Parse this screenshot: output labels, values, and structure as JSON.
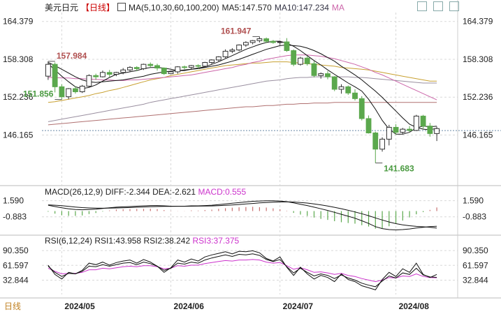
{
  "title": "美元日元",
  "period": "【日线】",
  "ma_label": "MA(5,10,30,60,100,200)",
  "ma5": "MA5:147.570",
  "ma10": "MA10:147.234",
  "ma_more": "MA",
  "colors": {
    "up": "#ffffff",
    "down": "#5ba84d",
    "ma5": "#111111",
    "ma10": "#111111",
    "ma30": "#cc66aa",
    "ma60": "#c8a030",
    "ma100": "#9a8fa0",
    "ma200": "#b07070",
    "macd_pos": "#c87070",
    "macd_neg": "#5ba84d",
    "diff": "#111111",
    "dea": "#111111",
    "rsi1": "#111111",
    "rsi2": "#111111",
    "rsi3": "#cc33cc",
    "grid": "#d8d8d8"
  },
  "price_axis": [
    "164.379",
    "158.308",
    "152.236",
    "146.165"
  ],
  "high_label": "161.947",
  "low_label": "141.683",
  "left_high_label": "157.984",
  "left_low_label": "151.856",
  "macd_header": {
    "name": "MACD(26,12,9)",
    "diff": "DIFF:-2.344",
    "dea": "DEA:-2.621",
    "macd": "MACD:0.555"
  },
  "macd_axis": [
    "1.590",
    "-0.883"
  ],
  "rsi_header": {
    "name": "RSI(6,12,24)",
    "rsi1": "RSI1:43.958",
    "rsi2": "RSI2:38.242",
    "rsi3": "RSI3:37.375"
  },
  "rsi_axis": [
    "90.350",
    "61.597",
    "32.844"
  ],
  "dates": [
    "2024/05",
    "2024/06",
    "2024/07",
    "2024/08"
  ],
  "period_tab": "日线",
  "chart_data": {
    "type": "candlestick",
    "candles": [
      [
        155.6,
        157.98,
        155.0,
        157.5
      ],
      [
        157.5,
        157.8,
        153.0,
        153.9
      ],
      [
        153.9,
        154.3,
        151.86,
        152.3
      ],
      [
        152.3,
        153.7,
        151.9,
        153.6
      ],
      [
        153.6,
        154.0,
        152.8,
        153.1
      ],
      [
        153.1,
        154.2,
        152.9,
        154.0
      ],
      [
        154.0,
        155.9,
        153.8,
        155.7
      ],
      [
        155.7,
        156.0,
        155.0,
        155.5
      ],
      [
        155.5,
        156.5,
        155.4,
        156.2
      ],
      [
        156.2,
        156.6,
        155.5,
        155.9
      ],
      [
        155.9,
        156.3,
        155.6,
        156.2
      ],
      [
        156.2,
        156.9,
        155.9,
        156.6
      ],
      [
        156.6,
        157.2,
        156.3,
        157.0
      ],
      [
        157.0,
        157.2,
        156.4,
        156.8
      ],
      [
        156.8,
        157.6,
        156.6,
        157.5
      ],
      [
        157.5,
        157.8,
        157.0,
        157.3
      ],
      [
        157.3,
        157.6,
        156.5,
        156.9
      ],
      [
        156.9,
        157.0,
        155.8,
        156.0
      ],
      [
        156.0,
        156.5,
        155.9,
        156.3
      ],
      [
        156.3,
        157.2,
        156.0,
        157.1
      ],
      [
        157.1,
        157.3,
        156.7,
        157.0
      ],
      [
        157.0,
        157.4,
        156.7,
        157.3
      ],
      [
        157.3,
        157.5,
        156.8,
        157.2
      ],
      [
        157.2,
        157.9,
        157.0,
        157.8
      ],
      [
        157.8,
        158.3,
        157.5,
        158.2
      ],
      [
        158.2,
        158.8,
        158.0,
        158.7
      ],
      [
        158.7,
        159.9,
        158.5,
        159.6
      ],
      [
        159.6,
        160.1,
        159.3,
        159.8
      ],
      [
        159.8,
        160.7,
        159.6,
        160.6
      ],
      [
        160.6,
        161.2,
        160.3,
        161.0
      ],
      [
        161.0,
        161.4,
        160.7,
        161.3
      ],
      [
        161.3,
        161.95,
        161.0,
        161.6
      ],
      [
        161.6,
        161.8,
        160.9,
        161.2
      ],
      [
        161.2,
        161.4,
        160.8,
        161.0
      ],
      [
        161.0,
        161.3,
        160.6,
        161.1
      ],
      [
        161.1,
        161.7,
        159.5,
        159.7
      ],
      [
        159.7,
        159.9,
        157.2,
        157.5
      ],
      [
        157.5,
        158.7,
        157.3,
        158.5
      ],
      [
        158.5,
        158.8,
        157.3,
        157.6
      ],
      [
        157.6,
        158.0,
        155.4,
        155.7
      ],
      [
        155.7,
        156.2,
        155.2,
        156.0
      ],
      [
        156.0,
        156.4,
        155.1,
        155.5
      ],
      [
        155.5,
        155.6,
        153.2,
        153.5
      ],
      [
        153.5,
        154.3,
        152.8,
        153.9
      ],
      [
        153.9,
        154.1,
        152.6,
        152.9
      ],
      [
        152.9,
        153.5,
        151.7,
        152.0
      ],
      [
        152.0,
        152.4,
        148.5,
        148.8
      ],
      [
        148.8,
        149.3,
        146.4,
        146.5
      ],
      [
        146.5,
        146.7,
        141.68,
        143.9
      ],
      [
        143.9,
        145.8,
        143.5,
        145.5
      ],
      [
        145.5,
        147.8,
        144.5,
        147.4
      ],
      [
        147.4,
        147.9,
        146.2,
        146.6
      ],
      [
        146.6,
        147.3,
        146.3,
        147.1
      ],
      [
        147.1,
        147.6,
        146.6,
        146.9
      ],
      [
        146.9,
        149.4,
        146.8,
        149.2
      ],
      [
        149.2,
        149.4,
        147.2,
        147.6
      ],
      [
        147.6,
        148.1,
        145.9,
        146.4
      ],
      [
        146.4,
        147.5,
        145.2,
        147.2
      ]
    ],
    "ma5": [
      157.6,
      156.6,
      155.6,
      154.7,
      153.9,
      153.6,
      153.8,
      154.2,
      154.8,
      155.4,
      155.9,
      156.1,
      156.3,
      156.5,
      156.8,
      157.0,
      157.0,
      156.9,
      156.7,
      156.5,
      156.5,
      156.7,
      156.9,
      157.1,
      157.5,
      157.9,
      158.4,
      158.9,
      159.4,
      159.9,
      160.3,
      160.7,
      161.0,
      161.2,
      161.2,
      160.9,
      160.4,
      159.7,
      158.9,
      158.1,
      157.4,
      156.6,
      155.9,
      155.2,
      154.5,
      153.9,
      153.2,
      151.9,
      150.3,
      148.5,
      147.1,
      146.3,
      146.3,
      146.6,
      147.3,
      147.6,
      147.5,
      147.57
    ],
    "ma10": [
      157.8,
      157.3,
      156.7,
      156.1,
      155.5,
      155.0,
      154.7,
      154.6,
      154.7,
      154.8,
      154.9,
      155.0,
      155.2,
      155.4,
      155.6,
      155.9,
      156.1,
      156.3,
      156.4,
      156.5,
      156.6,
      156.7,
      156.8,
      157.0,
      157.2,
      157.4,
      157.7,
      158.0,
      158.3,
      158.7,
      159.1,
      159.5,
      159.9,
      160.2,
      160.5,
      160.6,
      160.5,
      160.4,
      160.1,
      159.7,
      159.2,
      158.6,
      158.0,
      157.2,
      156.5,
      155.8,
      155.0,
      154.1,
      153.2,
      152.2,
      151.1,
      150.0,
      148.9,
      147.9,
      147.4,
      147.1,
      147.0,
      147.234
    ],
    "ma30": [
      155.4,
      155.4,
      155.3,
      155.3,
      155.2,
      155.2,
      155.1,
      155.1,
      155.0,
      155.0,
      154.9,
      154.9,
      155.0,
      155.0,
      155.1,
      155.2,
      155.3,
      155.4,
      155.5,
      155.6,
      155.7,
      155.8,
      156.0,
      156.2,
      156.4,
      156.6,
      156.8,
      157.0,
      157.3,
      157.5,
      157.8,
      158.0,
      158.3,
      158.5,
      158.7,
      158.9,
      159.0,
      159.0,
      159.0,
      158.9,
      158.8,
      158.6,
      158.4,
      158.1,
      157.8,
      157.5,
      157.1,
      156.7,
      156.2,
      155.8,
      155.3,
      154.8,
      154.3,
      153.8,
      153.3,
      152.8,
      152.3,
      151.8
    ],
    "ma60": [
      151.4,
      151.5,
      151.7,
      151.9,
      152.1,
      152.3,
      152.5,
      152.8,
      153.0,
      153.3,
      153.5,
      153.8,
      154.1,
      154.4,
      154.7,
      155.0,
      155.2,
      155.4,
      155.7,
      155.9,
      156.1,
      156.3,
      156.5,
      156.7,
      156.9,
      157.1,
      157.3,
      157.4,
      157.5,
      157.6,
      157.7,
      157.7,
      157.8,
      157.9,
      157.9,
      157.9,
      157.8,
      157.7,
      157.6,
      157.5,
      157.4,
      157.3,
      157.2,
      157.0,
      156.9,
      156.8,
      156.7,
      156.6,
      156.4,
      156.2,
      156.0,
      155.8,
      155.6,
      155.4,
      155.2,
      155.0,
      154.8,
      154.8
    ],
    "ma100": [
      148.3,
      148.5,
      148.7,
      148.9,
      149.1,
      149.3,
      149.5,
      149.7,
      149.9,
      150.1,
      150.3,
      150.5,
      150.7,
      150.9,
      151.1,
      151.4,
      151.6,
      151.8,
      152.0,
      152.2,
      152.4,
      152.6,
      152.8,
      153.0,
      153.2,
      153.4,
      153.6,
      153.8,
      154.0,
      154.2,
      154.4,
      154.6,
      154.8,
      154.9,
      155.0,
      155.2,
      155.3,
      155.4,
      155.4,
      155.5,
      155.5,
      155.5,
      155.5,
      155.5,
      155.5,
      155.4,
      155.4,
      155.3,
      155.2,
      155.1,
      155.0,
      154.9,
      154.8,
      154.7,
      154.6,
      154.5,
      154.5,
      154.5
    ],
    "ma200": [
      147.8,
      147.9,
      148.0,
      148.1,
      148.2,
      148.3,
      148.4,
      148.5,
      148.6,
      148.7,
      148.8,
      148.9,
      149.0,
      149.1,
      149.2,
      149.3,
      149.4,
      149.5,
      149.6,
      149.7,
      149.8,
      149.9,
      150.0,
      150.1,
      150.2,
      150.3,
      150.4,
      150.5,
      150.6,
      150.7,
      150.7,
      150.8,
      150.9,
      150.9,
      151.0,
      151.1,
      151.1,
      151.2,
      151.2,
      151.3,
      151.3,
      151.3,
      151.4,
      151.4,
      151.4,
      151.4,
      151.4,
      151.4,
      151.4,
      151.4,
      151.4,
      151.4,
      151.4,
      151.4,
      151.4,
      151.4,
      151.4,
      151.4
    ],
    "diff": [
      0.9,
      0.7,
      0.5,
      0.35,
      0.25,
      0.2,
      0.25,
      0.3,
      0.4,
      0.5,
      0.6,
      0.65,
      0.7,
      0.75,
      0.8,
      0.85,
      0.85,
      0.8,
      0.75,
      0.75,
      0.75,
      0.8,
      0.8,
      0.85,
      0.9,
      1.0,
      1.1,
      1.2,
      1.3,
      1.4,
      1.5,
      1.55,
      1.59,
      1.58,
      1.55,
      1.45,
      1.25,
      1.05,
      0.85,
      0.6,
      0.35,
      0.1,
      -0.2,
      -0.5,
      -0.8,
      -1.1,
      -1.5,
      -1.9,
      -2.4,
      -2.7,
      -2.85,
      -2.9,
      -2.85,
      -2.75,
      -2.6,
      -2.5,
      -2.4,
      -2.344
    ],
    "dea": [
      0.95,
      0.9,
      0.82,
      0.72,
      0.62,
      0.54,
      0.48,
      0.45,
      0.44,
      0.45,
      0.48,
      0.51,
      0.55,
      0.59,
      0.63,
      0.67,
      0.7,
      0.72,
      0.73,
      0.74,
      0.74,
      0.75,
      0.76,
      0.77,
      0.79,
      0.83,
      0.88,
      0.94,
      1.01,
      1.09,
      1.17,
      1.25,
      1.32,
      1.37,
      1.41,
      1.42,
      1.39,
      1.32,
      1.23,
      1.1,
      0.95,
      0.78,
      0.58,
      0.36,
      0.12,
      -0.13,
      -0.41,
      -0.71,
      -1.05,
      -1.38,
      -1.68,
      -1.93,
      -2.12,
      -2.26,
      -2.35,
      -2.42,
      -2.49,
      -2.621
    ],
    "macd_hist": [
      -0.1,
      -0.4,
      -0.64,
      -0.74,
      -0.74,
      -0.68,
      -0.46,
      -0.3,
      -0.08,
      0.1,
      0.24,
      0.28,
      0.3,
      0.32,
      0.34,
      0.36,
      0.3,
      0.16,
      0.04,
      0.02,
      0.02,
      0.1,
      0.08,
      0.16,
      0.22,
      0.34,
      0.44,
      0.52,
      0.58,
      0.62,
      0.66,
      0.6,
      0.54,
      0.42,
      0.28,
      0.06,
      -0.28,
      -0.54,
      -0.76,
      -1.0,
      -1.2,
      -1.36,
      -1.56,
      -1.72,
      -1.84,
      -1.94,
      -2.18,
      -2.38,
      -2.7,
      -2.64,
      -2.34,
      -1.94,
      -1.46,
      -0.98,
      -0.5,
      -0.16,
      0.18,
      0.555
    ],
    "rsi1": [
      62,
      44,
      35,
      48,
      45,
      52,
      66,
      63,
      68,
      62,
      67,
      70,
      72,
      66,
      73,
      68,
      60,
      48,
      57,
      72,
      68,
      74,
      70,
      78,
      82,
      85,
      88,
      84,
      89,
      88,
      90,
      86,
      75,
      70,
      78,
      58,
      42,
      58,
      45,
      35,
      42,
      38,
      30,
      45,
      34,
      30,
      22,
      18,
      14,
      34,
      48,
      40,
      55,
      48,
      66,
      44,
      38,
      43.958
    ],
    "rsi2": [
      60,
      48,
      40,
      46,
      45,
      50,
      60,
      59,
      63,
      60,
      63,
      66,
      67,
      63,
      68,
      65,
      60,
      52,
      56,
      66,
      64,
      68,
      66,
      72,
      76,
      79,
      82,
      79,
      83,
      82,
      84,
      81,
      73,
      69,
      73,
      59,
      47,
      56,
      48,
      41,
      45,
      42,
      36,
      43,
      37,
      33,
      27,
      23,
      20,
      31,
      41,
      37,
      47,
      44,
      56,
      43,
      39,
      38.242
    ],
    "rsi3": [
      56,
      50,
      45,
      46,
      46,
      48,
      53,
      53,
      56,
      55,
      57,
      59,
      60,
      59,
      61,
      61,
      59,
      55,
      56,
      61,
      60,
      62,
      62,
      65,
      67,
      69,
      71,
      70,
      72,
      72,
      73,
      72,
      68,
      66,
      67,
      61,
      54,
      57,
      53,
      48,
      49,
      47,
      44,
      46,
      42,
      40,
      36,
      33,
      30,
      33,
      38,
      37,
      41,
      40,
      45,
      40,
      38,
      37.375
    ],
    "price_range": [
      138.5,
      165.8
    ],
    "macd_range": [
      -3.6,
      2.2
    ],
    "rsi_range": [
      5,
      100
    ],
    "current_price": 146.88
  }
}
